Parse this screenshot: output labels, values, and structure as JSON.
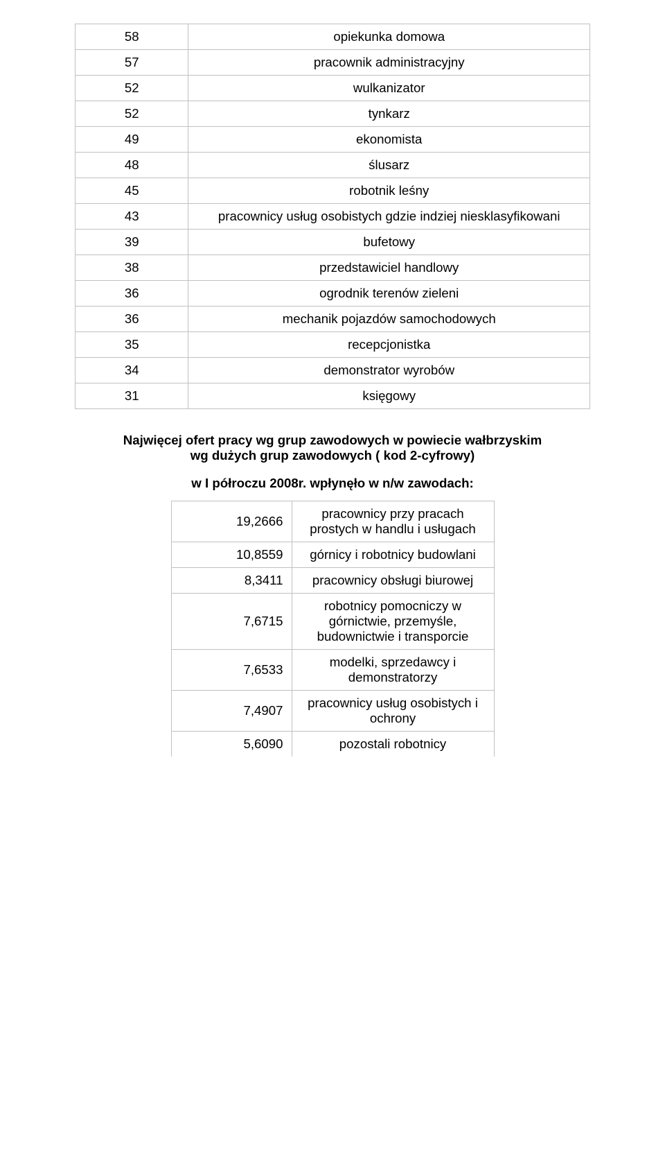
{
  "table1": {
    "border_color": "#c0c0c0",
    "text_color": "#000000",
    "font_size_pt": 14,
    "rows": [
      {
        "n": "58",
        "t": "opiekunka domowa"
      },
      {
        "n": "57",
        "t": "pracownik administracyjny"
      },
      {
        "n": "52",
        "t": "wulkanizator"
      },
      {
        "n": "52",
        "t": "tynkarz"
      },
      {
        "n": "49",
        "t": "ekonomista"
      },
      {
        "n": "48",
        "t": "ślusarz"
      },
      {
        "n": "45",
        "t": "robotnik leśny"
      },
      {
        "n": "43",
        "t": "pracownicy usług osobistych gdzie indziej niesklasyfikowani"
      },
      {
        "n": "39",
        "t": "bufetowy"
      },
      {
        "n": "38",
        "t": "przedstawiciel handlowy"
      },
      {
        "n": "36",
        "t": "ogrodnik terenów zieleni"
      },
      {
        "n": "36",
        "t": "mechanik pojazdów samochodowych"
      },
      {
        "n": "35",
        "t": "recepcjonistka"
      },
      {
        "n": "34",
        "t": "demonstrator wyrobów"
      },
      {
        "n": "31",
        "t": "księgowy"
      }
    ]
  },
  "section": {
    "text_color": "#000000",
    "font_size_pt": 14,
    "line1": "Najwięcej ofert pracy wg grup zawodowych w powiecie wałbrzyskim",
    "line2": "wg dużych grup zawodowych ( kod 2-cyfrowy)",
    "line3": "w I półroczu 2008r. wpłynęło w n/w zawodach:"
  },
  "table2": {
    "border_color": "#c0c0c0",
    "text_color": "#000000",
    "font_size_pt": 14,
    "rows": [
      {
        "n": "19,2666",
        "t": "pracownicy przy pracach prostych w handlu i usługach"
      },
      {
        "n": "10,8559",
        "t": "górnicy i robotnicy budowlani"
      },
      {
        "n": "8,3411",
        "t": "pracownicy obsługi biurowej"
      },
      {
        "n": "7,6715",
        "t": "robotnicy pomocniczy w górnictwie, przemyśle, budownictwie i transporcie"
      },
      {
        "n": "7,6533",
        "t": "modelki, sprzedawcy i demonstratorzy"
      },
      {
        "n": "7,4907",
        "t": "pracownicy usług osobistych i ochrony"
      },
      {
        "n": "5,6090",
        "t": "pozostali robotnicy"
      }
    ]
  }
}
